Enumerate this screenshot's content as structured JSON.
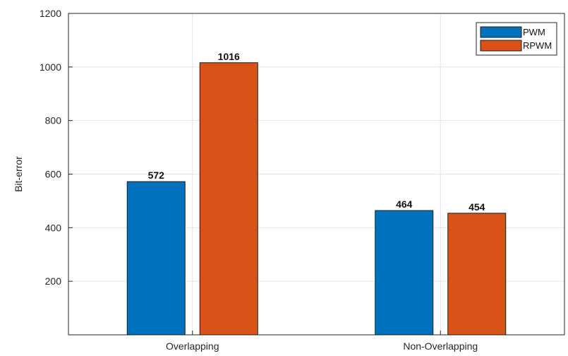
{
  "chart_data": {
    "type": "bar",
    "categories": [
      "Overlapping",
      "Non-Overlapping"
    ],
    "series": [
      {
        "name": "PWM",
        "values": [
          572,
          464
        ],
        "color": "#0072BD"
      },
      {
        "name": "RPWM",
        "values": [
          1016,
          454
        ],
        "color": "#D95319"
      }
    ],
    "data_labels": [
      [
        "572",
        "464"
      ],
      [
        "1016",
        "454"
      ]
    ],
    "ylabel": "Bit-error",
    "xlabel": "",
    "ylim": [
      0,
      1200
    ],
    "yticks": [
      200,
      400,
      600,
      800,
      1000,
      1200
    ],
    "ytick_labels": [
      "200",
      "400",
      "600",
      "800",
      "1000",
      "1200"
    ],
    "grid": true,
    "legend": "top-right"
  }
}
